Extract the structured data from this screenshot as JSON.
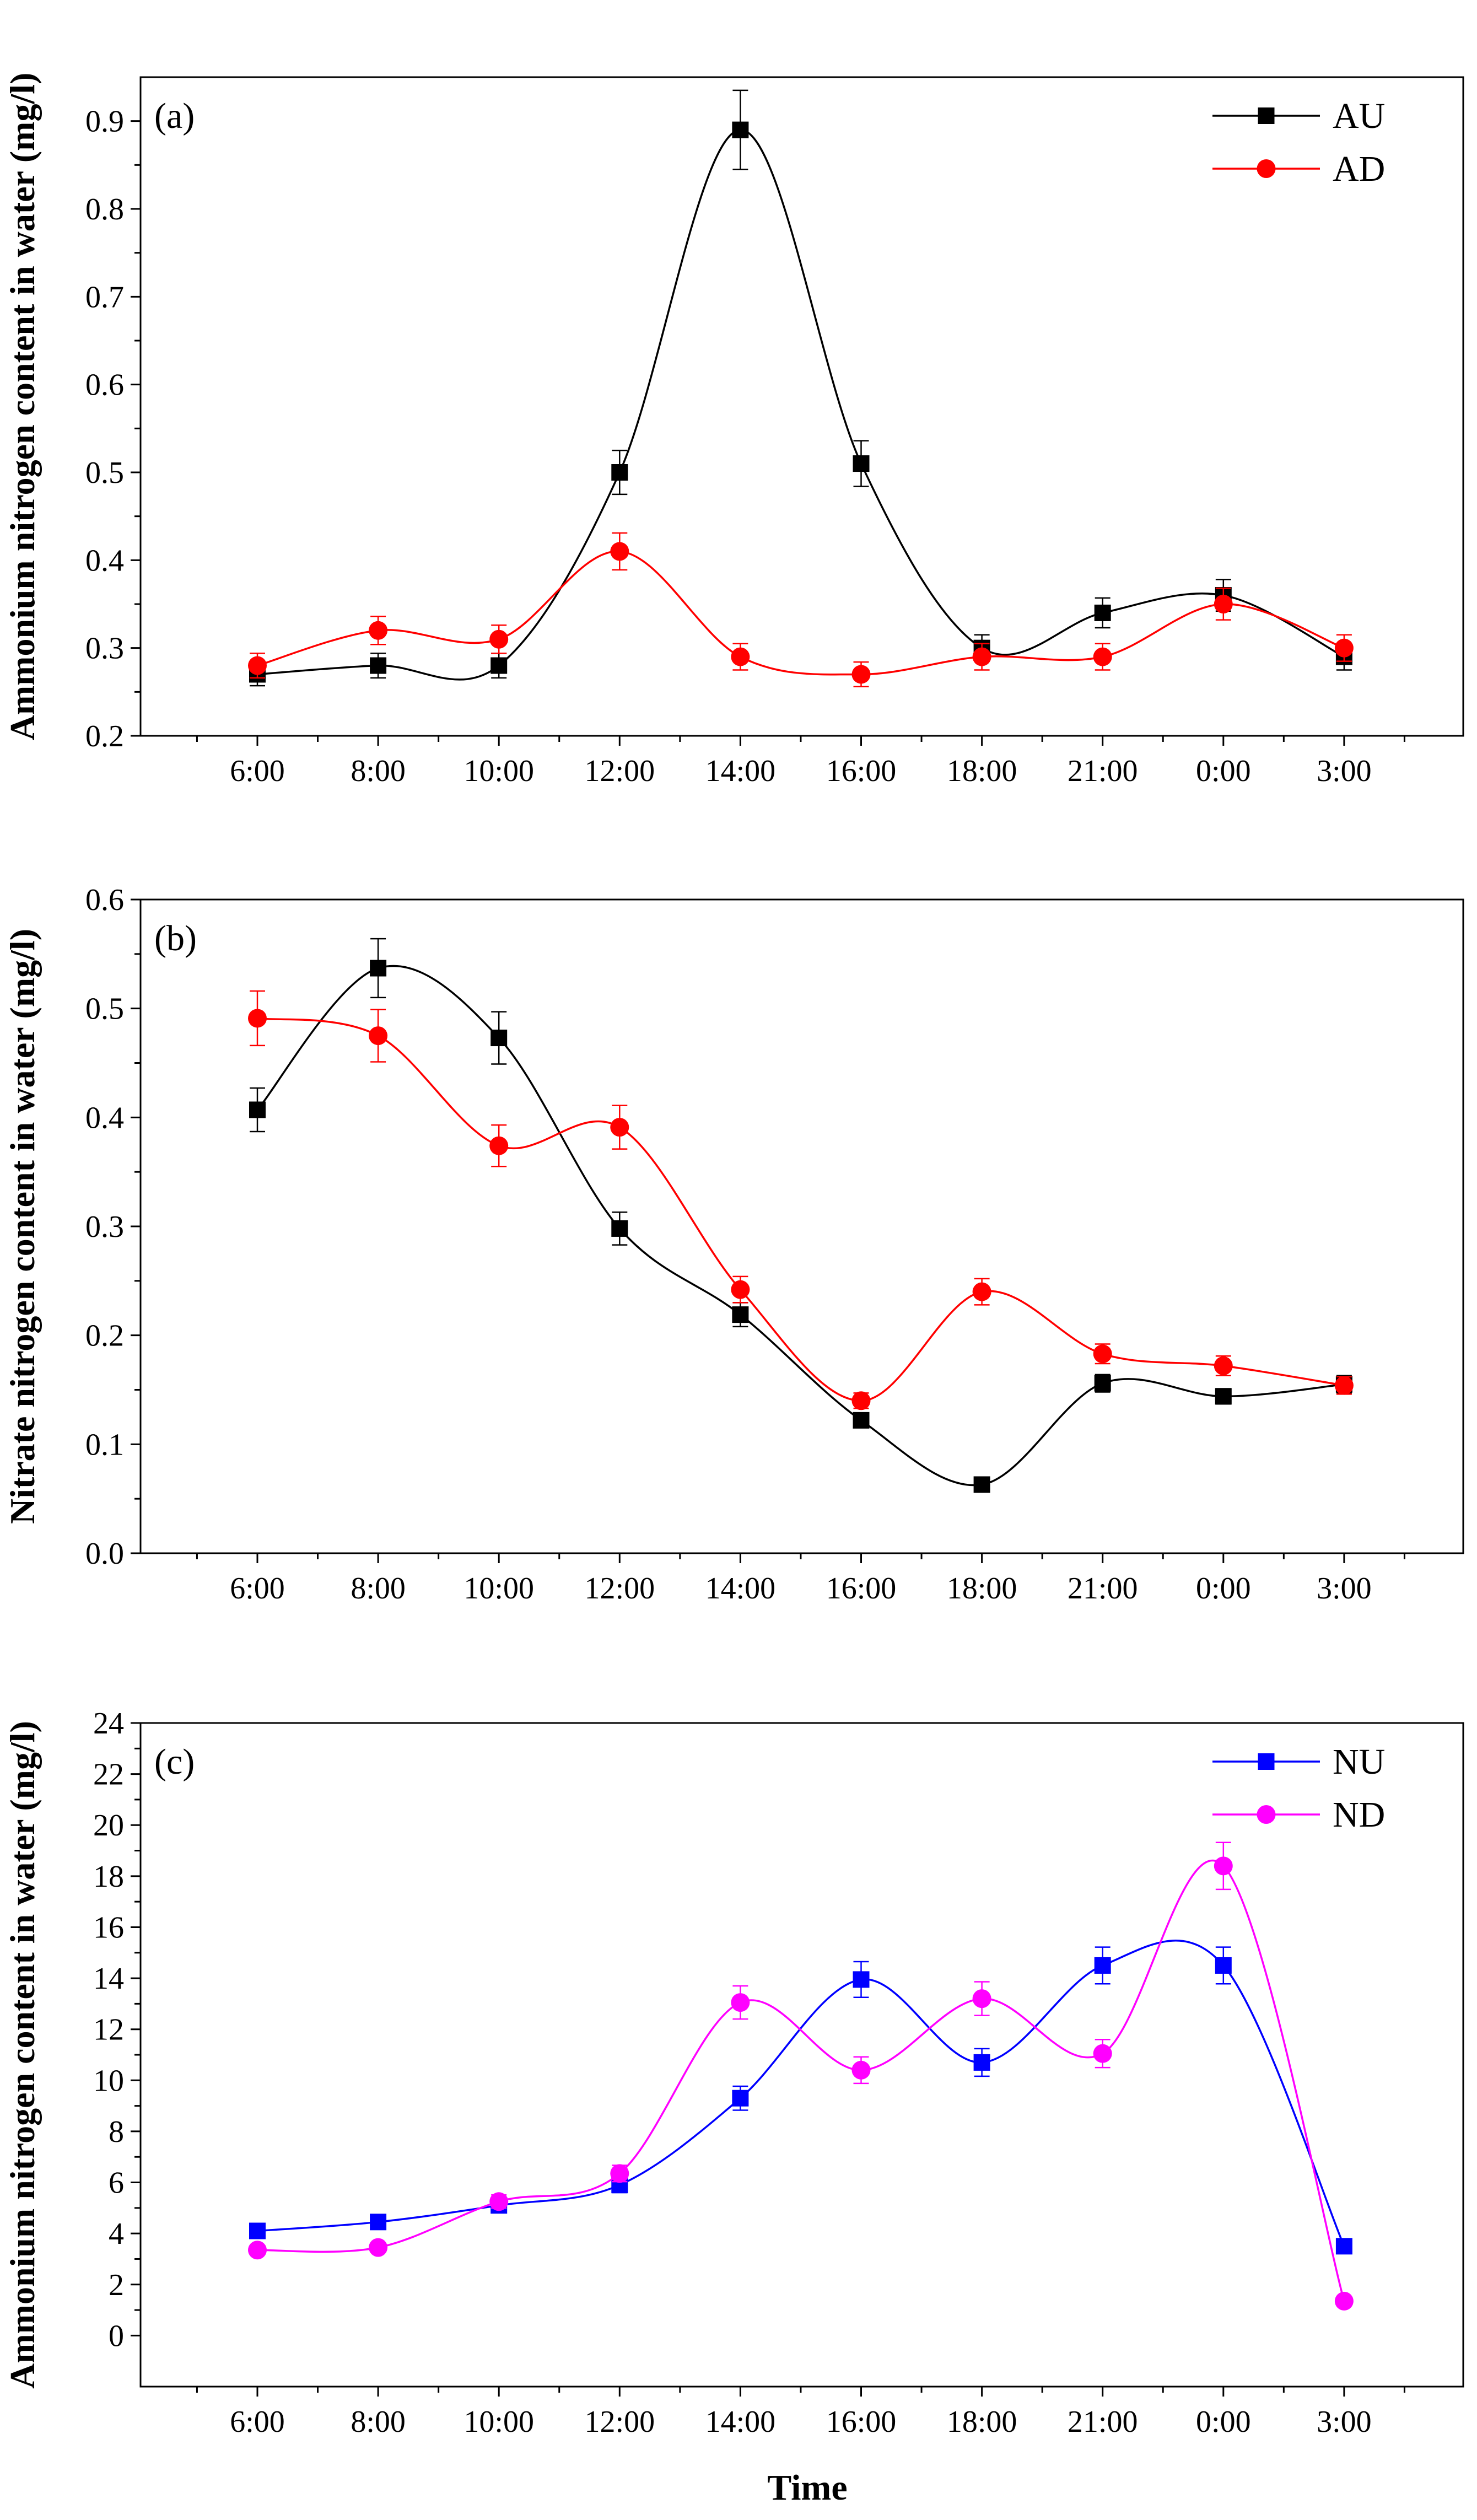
{
  "figure": {
    "xlabel": "Time"
  },
  "chart_data": [
    {
      "type": "line",
      "panel_label": "(a)",
      "ylabel": "Ammonium nitrogen content in water (mg/l)",
      "xlabel": "Time",
      "categories": [
        "6:00",
        "8:00",
        "10:00",
        "12:00",
        "14:00",
        "16:00",
        "18:00",
        "21:00",
        "0:00",
        "3:00"
      ],
      "ylim": [
        0.2,
        0.95
      ],
      "yticks": [
        0.2,
        0.3,
        0.4,
        0.5,
        0.6,
        0.7,
        0.8,
        0.9
      ],
      "ytick_labels": [
        "0.2",
        "0.3",
        "0.4",
        "0.5",
        "0.6",
        "0.7",
        "0.8",
        "0.9"
      ],
      "legend_position": "top-right",
      "series": [
        {
          "name": "AU",
          "color": "#000000",
          "marker": "square",
          "values": [
            0.27,
            0.28,
            0.28,
            0.5,
            0.89,
            0.51,
            0.3,
            0.34,
            0.36,
            0.29
          ],
          "errors": [
            0.013,
            0.014,
            0.014,
            0.025,
            0.045,
            0.026,
            0.015,
            0.017,
            0.018,
            0.015
          ]
        },
        {
          "name": "AD",
          "color": "#ff0000",
          "marker": "circle",
          "values": [
            0.28,
            0.32,
            0.31,
            0.41,
            0.29,
            0.27,
            0.29,
            0.29,
            0.35,
            0.3
          ],
          "errors": [
            0.014,
            0.016,
            0.016,
            0.021,
            0.015,
            0.014,
            0.015,
            0.015,
            0.018,
            0.015
          ]
        }
      ]
    },
    {
      "type": "line",
      "panel_label": "(b)",
      "ylabel": "Nitrate nitrogen content in water (mg/l)",
      "xlabel": "Time",
      "categories": [
        "6:00",
        "8:00",
        "10:00",
        "12:00",
        "14:00",
        "16:00",
        "18:00",
        "21:00",
        "0:00",
        "3:00"
      ],
      "ylim": [
        0.0,
        0.6
      ],
      "yticks": [
        0.0,
        0.1,
        0.2,
        0.3,
        0.4,
        0.5,
        0.6
      ],
      "ytick_labels": [
        "0.0",
        "0.1",
        "0.2",
        "0.3",
        "0.4",
        "0.5",
        "0.6"
      ],
      "legend_position": "none",
      "series": [
        {
          "name": "AU",
          "color": "#000000",
          "marker": "square",
          "values": [
            0.407,
            0.537,
            0.473,
            0.298,
            0.219,
            0.122,
            0.063,
            0.156,
            0.144,
            0.155
          ],
          "errors": [
            0.02,
            0.027,
            0.024,
            0.015,
            0.011,
            0.006,
            0.003,
            0.008,
            0.007,
            0.008
          ]
        },
        {
          "name": "AD",
          "color": "#ff0000",
          "marker": "circle",
          "values": [
            0.491,
            0.475,
            0.374,
            0.391,
            0.242,
            0.14,
            0.24,
            0.183,
            0.172,
            0.154
          ],
          "errors": [
            0.025,
            0.024,
            0.019,
            0.02,
            0.012,
            0.007,
            0.012,
            0.009,
            0.009,
            0.008
          ]
        }
      ]
    },
    {
      "type": "line",
      "panel_label": "(c)",
      "ylabel": "Ammonium nitrogen content in water (mg/l)",
      "xlabel": "Time",
      "categories": [
        "6:00",
        "8:00",
        "10:00",
        "12:00",
        "14:00",
        "16:00",
        "18:00",
        "21:00",
        "0:00",
        "3:00"
      ],
      "ylim": [
        -2,
        24
      ],
      "yticks": [
        0,
        2,
        4,
        6,
        8,
        10,
        12,
        14,
        16,
        18,
        20,
        22,
        24
      ],
      "ytick_labels": [
        "0",
        "2",
        "4",
        "6",
        "8",
        "10",
        "12",
        "14",
        "16",
        "18",
        "20",
        "22",
        "24"
      ],
      "legend_position": "top-right",
      "series": [
        {
          "name": "NU",
          "color": "#0000ff",
          "marker": "square",
          "values": [
            4.1,
            4.45,
            5.1,
            5.9,
            9.3,
            13.95,
            10.7,
            14.5,
            14.5,
            3.5
          ],
          "errors": [
            0.2,
            0.22,
            0.25,
            0.3,
            0.47,
            0.7,
            0.54,
            0.72,
            0.72,
            0.18
          ]
        },
        {
          "name": "ND",
          "color": "#ff00ff",
          "marker": "circle",
          "values": [
            3.35,
            3.45,
            5.25,
            6.35,
            13.05,
            10.4,
            13.2,
            11.05,
            18.4,
            1.35
          ],
          "errors": [
            0.17,
            0.17,
            0.26,
            0.32,
            0.65,
            0.52,
            0.66,
            0.55,
            0.92,
            0.07
          ]
        }
      ]
    }
  ]
}
